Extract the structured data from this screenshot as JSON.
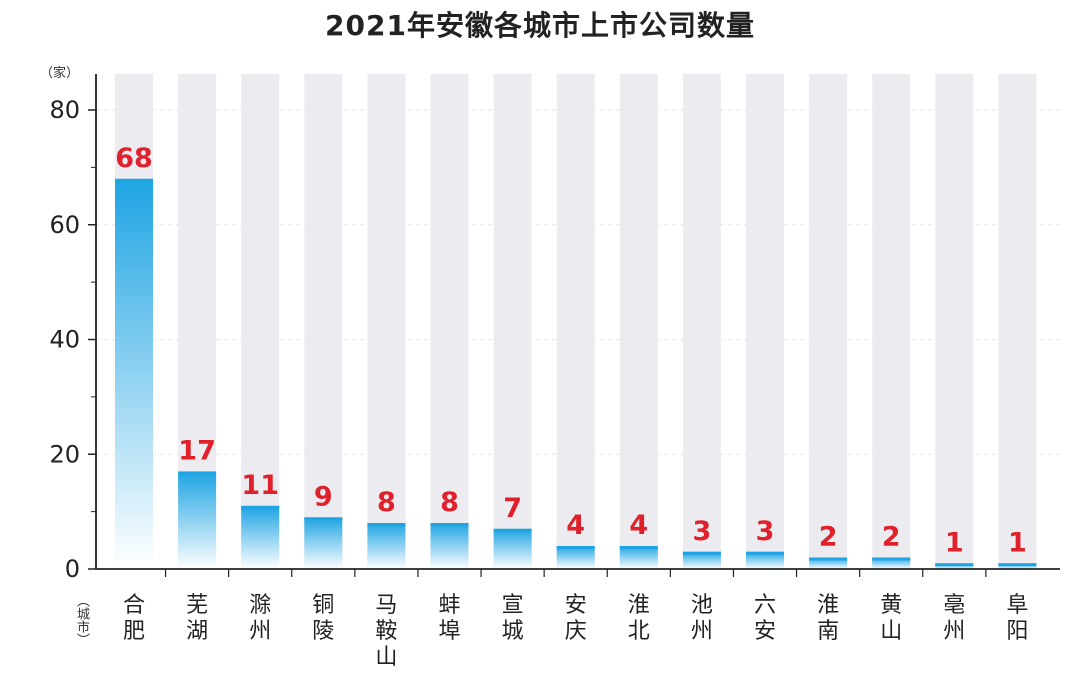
{
  "chart_data": {
    "type": "bar",
    "title": "2021年安徽各城市上市公司数量",
    "ylabel": "（家）",
    "xlabel": "（城市）",
    "categories": [
      "合肥",
      "芜湖",
      "滁州",
      "铜陵",
      "马鞍山",
      "蚌埠",
      "宣城",
      "安庆",
      "淮北",
      "池州",
      "六安",
      "淮南",
      "黄山",
      "亳州",
      "阜阳"
    ],
    "values": [
      68,
      17,
      11,
      9,
      8,
      8,
      7,
      4,
      4,
      3,
      3,
      2,
      2,
      1,
      1
    ],
    "ylim": [
      0,
      80
    ],
    "yticks": [
      0,
      20,
      40,
      60,
      80
    ],
    "grid": true,
    "colors": {
      "bar_top": "#1ea4e3",
      "bar_bottom": "#ffffff",
      "background_column": "#ececf0",
      "value_label": "#e0202a",
      "axis": "#222222",
      "grid": "#e6e6e6"
    }
  }
}
